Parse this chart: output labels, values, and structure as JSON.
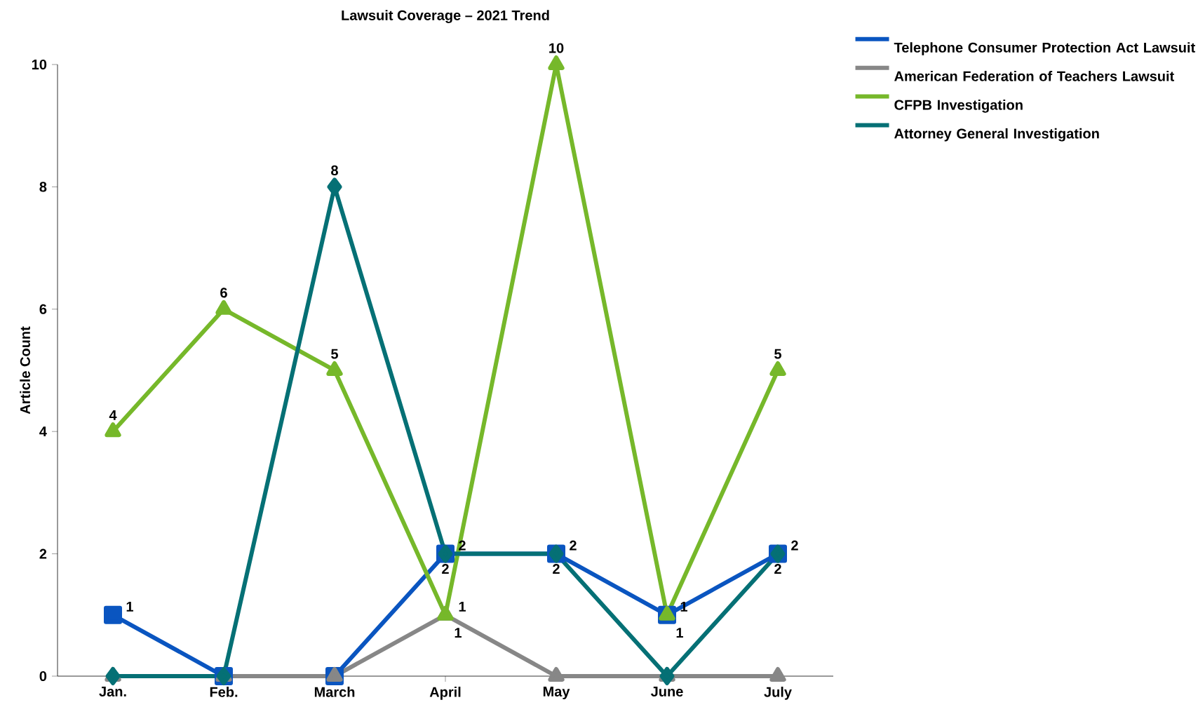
{
  "chart_data": {
    "type": "line",
    "title": "Lawsuit Coverage – 2021 Trend",
    "ylabel": "Article Count",
    "categories": [
      "Jan.",
      "Feb.",
      "March",
      "April",
      "May",
      "June",
      "July"
    ],
    "ylim": [
      0,
      10
    ],
    "yticks": [
      0,
      2,
      4,
      6,
      8,
      10
    ],
    "grid": false,
    "legend": "top right",
    "series": [
      {
        "name": "Telephone Consumer Protection Act Lawsuit",
        "color": "#0a55c0",
        "marker": "square",
        "values": [
          1,
          0,
          0,
          2,
          2,
          1,
          2
        ],
        "value_labels": [
          "1",
          null,
          null,
          "2",
          "2",
          "1",
          "2"
        ]
      },
      {
        "name": "American Federation of Teachers Lawsuit",
        "color": "#878787",
        "marker": "triangle",
        "values": [
          0,
          0,
          0,
          1,
          0,
          0,
          0
        ],
        "value_labels": [
          null,
          null,
          null,
          "1",
          null,
          null,
          null
        ]
      },
      {
        "name": "CFPB Investigation",
        "color": "#76b82a",
        "marker": "triangle",
        "values": [
          4,
          6,
          5,
          1,
          10,
          1,
          5
        ],
        "value_labels": [
          "4",
          "6",
          "5",
          "1",
          "10",
          "1",
          "5"
        ]
      },
      {
        "name": "Attorney General Investigation",
        "color": "#057075",
        "marker": "diamond",
        "values": [
          0,
          0,
          8,
          2,
          2,
          0,
          2
        ],
        "value_labels": [
          null,
          null,
          "8",
          "2",
          "2",
          null,
          "2"
        ]
      }
    ]
  }
}
